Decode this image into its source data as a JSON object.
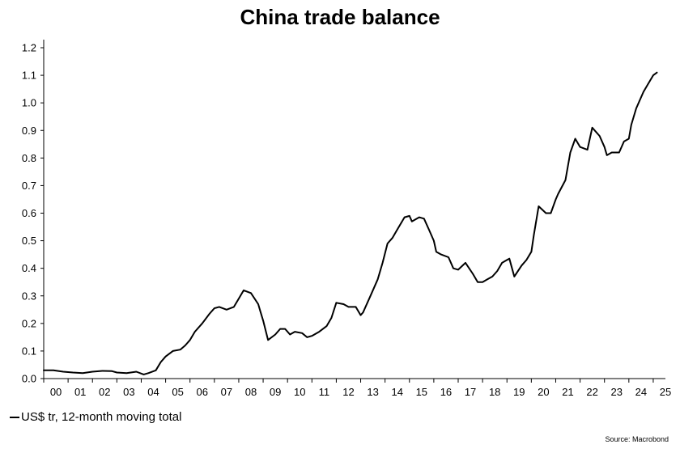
{
  "chart_data": {
    "type": "line",
    "title": "China trade balance",
    "source": "Source: Macrobond",
    "ylim": [
      0,
      1.2
    ],
    "y_ticks": [
      "0.0",
      "0.1",
      "0.2",
      "0.3",
      "0.4",
      "0.5",
      "0.6",
      "0.7",
      "0.8",
      "0.9",
      "1.0",
      "1.1",
      "1.2"
    ],
    "x_ticks": [
      "00",
      "01",
      "02",
      "03",
      "04",
      "05",
      "06",
      "07",
      "08",
      "09",
      "10",
      "11",
      "12",
      "13",
      "14",
      "15",
      "16",
      "17",
      "18",
      "19",
      "20",
      "21",
      "22",
      "23",
      "24",
      "25"
    ],
    "xlim": [
      2000,
      2025.5
    ],
    "grid": false,
    "legend": "bottom-left",
    "series": [
      {
        "name": "US$ tr, 12-month moving total",
        "color": "#000000",
        "x": [
          2000.0,
          2000.4,
          2000.8,
          2001.2,
          2001.6,
          2002.0,
          2002.4,
          2002.8,
          2003.0,
          2003.4,
          2003.8,
          2004.1,
          2004.3,
          2004.6,
          2004.8,
          2005.0,
          2005.3,
          2005.6,
          2005.8,
          2006.0,
          2006.2,
          2006.5,
          2006.8,
          2007.0,
          2007.2,
          2007.5,
          2007.8,
          2008.0,
          2008.2,
          2008.5,
          2008.8,
          2008.9,
          2009.0,
          2009.2,
          2009.5,
          2009.7,
          2009.9,
          2010.1,
          2010.3,
          2010.6,
          2010.8,
          2011.0,
          2011.3,
          2011.6,
          2011.8,
          2012.0,
          2012.3,
          2012.5,
          2012.8,
          2013.0,
          2013.1,
          2013.4,
          2013.7,
          2013.9,
          2014.1,
          2014.3,
          2014.5,
          2014.8,
          2015.0,
          2015.1,
          2015.4,
          2015.6,
          2015.8,
          2016.0,
          2016.1,
          2016.3,
          2016.6,
          2016.8,
          2017.0,
          2017.3,
          2017.6,
          2017.8,
          2018.0,
          2018.2,
          2018.4,
          2018.6,
          2018.8,
          2019.0,
          2019.1,
          2019.3,
          2019.6,
          2019.8,
          2020.0,
          2020.1,
          2020.3,
          2020.6,
          2020.8,
          2021.0,
          2021.1,
          2021.4,
          2021.6,
          2021.8,
          2022.0,
          2022.3,
          2022.5,
          2022.8,
          2023.0,
          2023.1,
          2023.3,
          2023.6,
          2023.8,
          2024.0,
          2024.1,
          2024.3,
          2024.6,
          2024.8,
          2025.0,
          2025.15
        ],
        "values": [
          0.03,
          0.03,
          0.025,
          0.022,
          0.02,
          0.025,
          0.028,
          0.027,
          0.022,
          0.02,
          0.025,
          0.015,
          0.02,
          0.03,
          0.06,
          0.08,
          0.1,
          0.105,
          0.12,
          0.14,
          0.17,
          0.2,
          0.235,
          0.255,
          0.26,
          0.25,
          0.26,
          0.29,
          0.32,
          0.31,
          0.27,
          0.24,
          0.21,
          0.14,
          0.16,
          0.18,
          0.18,
          0.16,
          0.17,
          0.165,
          0.15,
          0.155,
          0.17,
          0.19,
          0.22,
          0.275,
          0.27,
          0.26,
          0.26,
          0.23,
          0.24,
          0.3,
          0.36,
          0.42,
          0.49,
          0.51,
          0.54,
          0.585,
          0.59,
          0.57,
          0.585,
          0.58,
          0.54,
          0.5,
          0.46,
          0.45,
          0.44,
          0.4,
          0.395,
          0.42,
          0.38,
          0.35,
          0.35,
          0.36,
          0.37,
          0.39,
          0.42,
          0.43,
          0.435,
          0.37,
          0.41,
          0.43,
          0.46,
          0.52,
          0.625,
          0.6,
          0.6,
          0.65,
          0.67,
          0.72,
          0.82,
          0.87,
          0.84,
          0.83,
          0.91,
          0.88,
          0.84,
          0.81,
          0.82,
          0.82,
          0.86,
          0.87,
          0.92,
          0.98,
          1.04,
          1.07,
          1.1,
          1.11
        ]
      }
    ]
  }
}
